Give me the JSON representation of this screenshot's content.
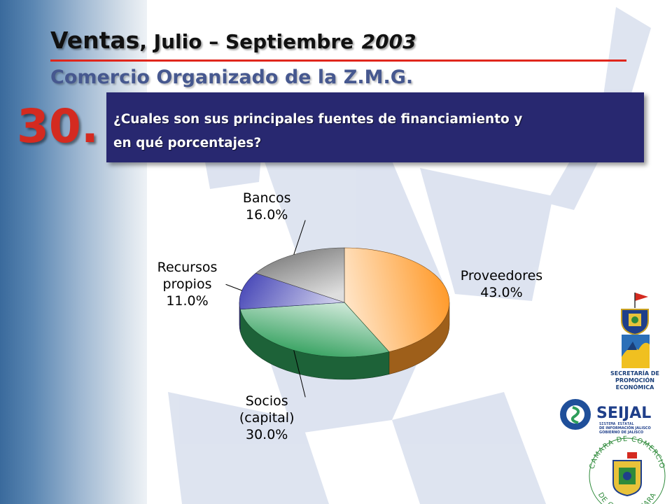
{
  "header": {
    "title_main": "Ventas",
    "title_rest": ", Julio – Septiembre",
    "title_year": "2003",
    "subtitle": "Comercio Organizado de la Z.M.G."
  },
  "question": {
    "number": "30.",
    "text_line1": "¿Cuales son sus principales fuentes de financiamiento y",
    "text_line2": "en qué porcentajes?"
  },
  "chart_data": {
    "type": "pie",
    "style": "3d",
    "categories": [
      "Proveedores",
      "Socios (capital)",
      "Recursos propios",
      "Bancos"
    ],
    "values": [
      43.0,
      30.0,
      11.0,
      16.0
    ],
    "value_labels": [
      "43.0%",
      "30.0%",
      "11.0%",
      "16.0%"
    ],
    "label_lines": [
      [
        "Proveedores"
      ],
      [
        "Socios",
        "(capital)"
      ],
      [
        "Recursos",
        "propios"
      ],
      [
        "Bancos"
      ]
    ],
    "colors": [
      "#ff9a2a",
      "#2e9e5a",
      "#4a4ab8",
      "#7c7c7c"
    ],
    "title": ""
  },
  "logos": {
    "promocion_line1": "SECRETARÍA DE",
    "promocion_line2": "PROMOCIÓN",
    "promocion_line3": "ECONÓMICA",
    "seijal_name": "SEIJAL",
    "seijal_line1": "SISTEMA ESTATAL",
    "seijal_line2": "DE INFORMACIÓN JALISCO",
    "seijal_line3": "GOBIERNO DE JALISCO",
    "camara_top": "CAMARA DE COMERCIO",
    "camara_bottom": "DE GUADALAJARA"
  }
}
